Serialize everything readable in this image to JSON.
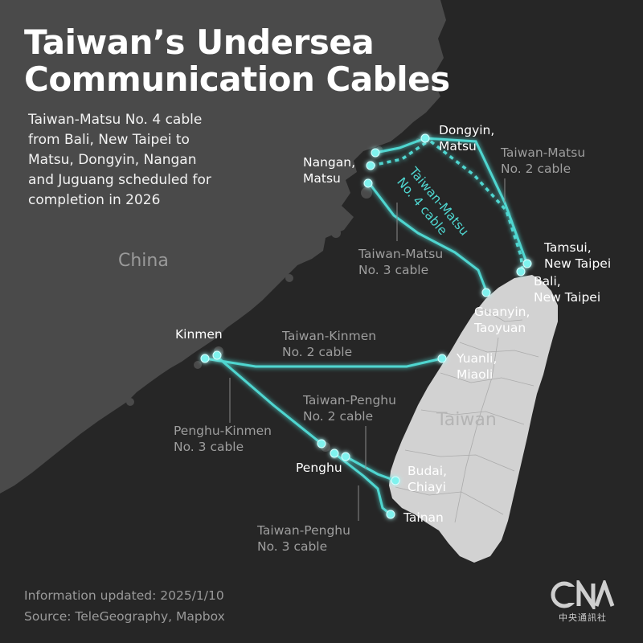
{
  "title": {
    "line1": "Taiwan’s Undersea",
    "line2": "Communication Cables"
  },
  "subtitle_lines": [
    "Taiwan-Matsu No. 4 cable",
    "from Bali, New Taipei to",
    "Matsu, Dongyin, Nangan",
    "and Juguang scheduled for",
    "completion in 2026"
  ],
  "regions": {
    "china": "China",
    "taiwan": "Taiwan"
  },
  "places": {
    "dongyin": [
      "Dongyin,",
      "Matsu"
    ],
    "nangan": [
      "Nangan,",
      "Matsu"
    ],
    "tamsui": [
      "Tamsui,",
      "New Taipei"
    ],
    "bali": [
      "Bali,",
      "New Taipei"
    ],
    "guanyin": [
      "Guanyin,",
      "Taoyuan"
    ],
    "kinmen": "Kinmen",
    "yuanli": [
      "Yuanli,",
      "Miaoli"
    ],
    "penghu": "Penghu",
    "budai": [
      "Budai,",
      "Chiayi"
    ],
    "tainan": "Tainan"
  },
  "cables": {
    "tm2": [
      "Taiwan-Matsu",
      "No. 2 cable"
    ],
    "tm3": [
      "Taiwan-Matsu",
      "No. 3 cable"
    ],
    "tm4": [
      "Taiwan-Matsu",
      "No. 4 cable"
    ],
    "tk2": [
      "Taiwan-Kinmen",
      "No. 2 cable"
    ],
    "tp2": [
      "Taiwan-Penghu",
      "No. 2 cable"
    ],
    "pk3": [
      "Penghu-Kinmen",
      "No. 3 cable"
    ],
    "tp3": [
      "Taiwan-Penghu",
      "No. 3 cable"
    ]
  },
  "footer": {
    "updated": "Information updated: 2025/1/10",
    "source": "Source: TeleGeography, Mapbox"
  },
  "logo": {
    "mark": "CNA",
    "name": "中央通訊社"
  },
  "colors": {
    "sea": "#262626",
    "land": "#4a4a4a",
    "taiwan": "#d2d2d2",
    "cable": "#4fd6d0",
    "node": "#7ff2ee",
    "text": "#ffffff",
    "muted": "#9e9e9e"
  }
}
